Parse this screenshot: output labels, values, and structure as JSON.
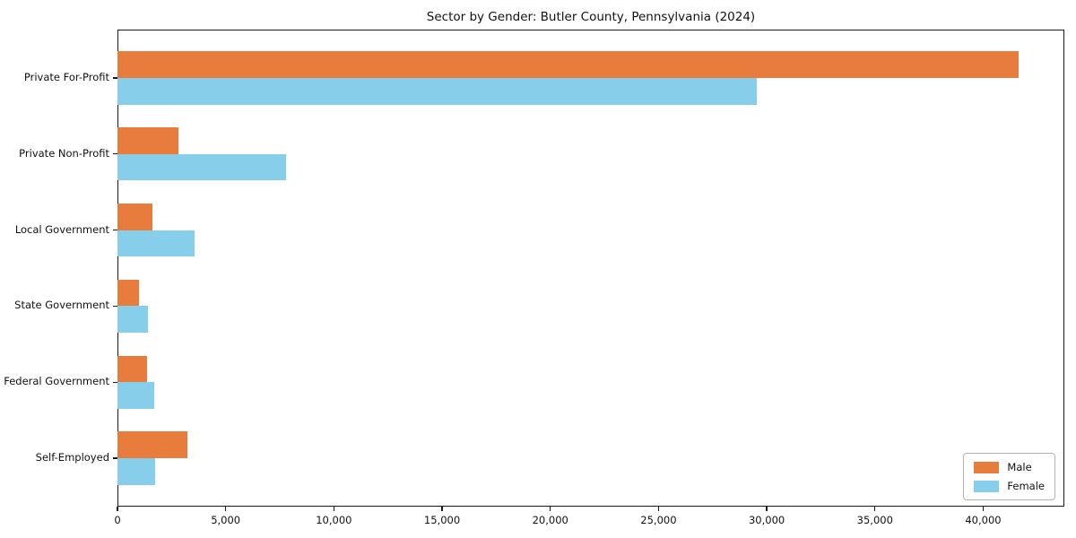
{
  "title": "Sector by Gender: Butler County, Pennsylvania (2024)",
  "colors": {
    "male": "#E77C3D",
    "female": "#87CEEB",
    "spine": "#1a1a1a",
    "legend_border": "#b3b3b3",
    "background": "#ffffff"
  },
  "legend": {
    "position": "lower right",
    "items": [
      {
        "label": "Male",
        "color": "#E77C3D"
      },
      {
        "label": "Female",
        "color": "#87CEEB"
      }
    ]
  },
  "chart_data": {
    "type": "bar",
    "orientation": "horizontal",
    "title": "Sector by Gender: Butler County, Pennsylvania (2024)",
    "xlabel": "",
    "ylabel": "",
    "categories": [
      "Private For-Profit",
      "Private Non-Profit",
      "Local Government",
      "State Government",
      "Federal Government",
      "Self-Employed"
    ],
    "series": [
      {
        "name": "Male",
        "color": "#E77C3D",
        "values": [
          41650,
          2800,
          1600,
          1000,
          1350,
          3250
        ]
      },
      {
        "name": "Female",
        "color": "#87CEEB",
        "values": [
          29550,
          7800,
          3550,
          1400,
          1700,
          1750
        ]
      }
    ],
    "xlim": [
      0,
      43750
    ],
    "xticks": [
      0,
      5000,
      10000,
      15000,
      20000,
      25000,
      30000,
      35000,
      40000
    ],
    "xtick_labels": [
      "0",
      "5,000",
      "10,000",
      "15,000",
      "20,000",
      "25,000",
      "30,000",
      "35,000",
      "40,000"
    ],
    "grid": false,
    "legend_position": "lower right"
  }
}
